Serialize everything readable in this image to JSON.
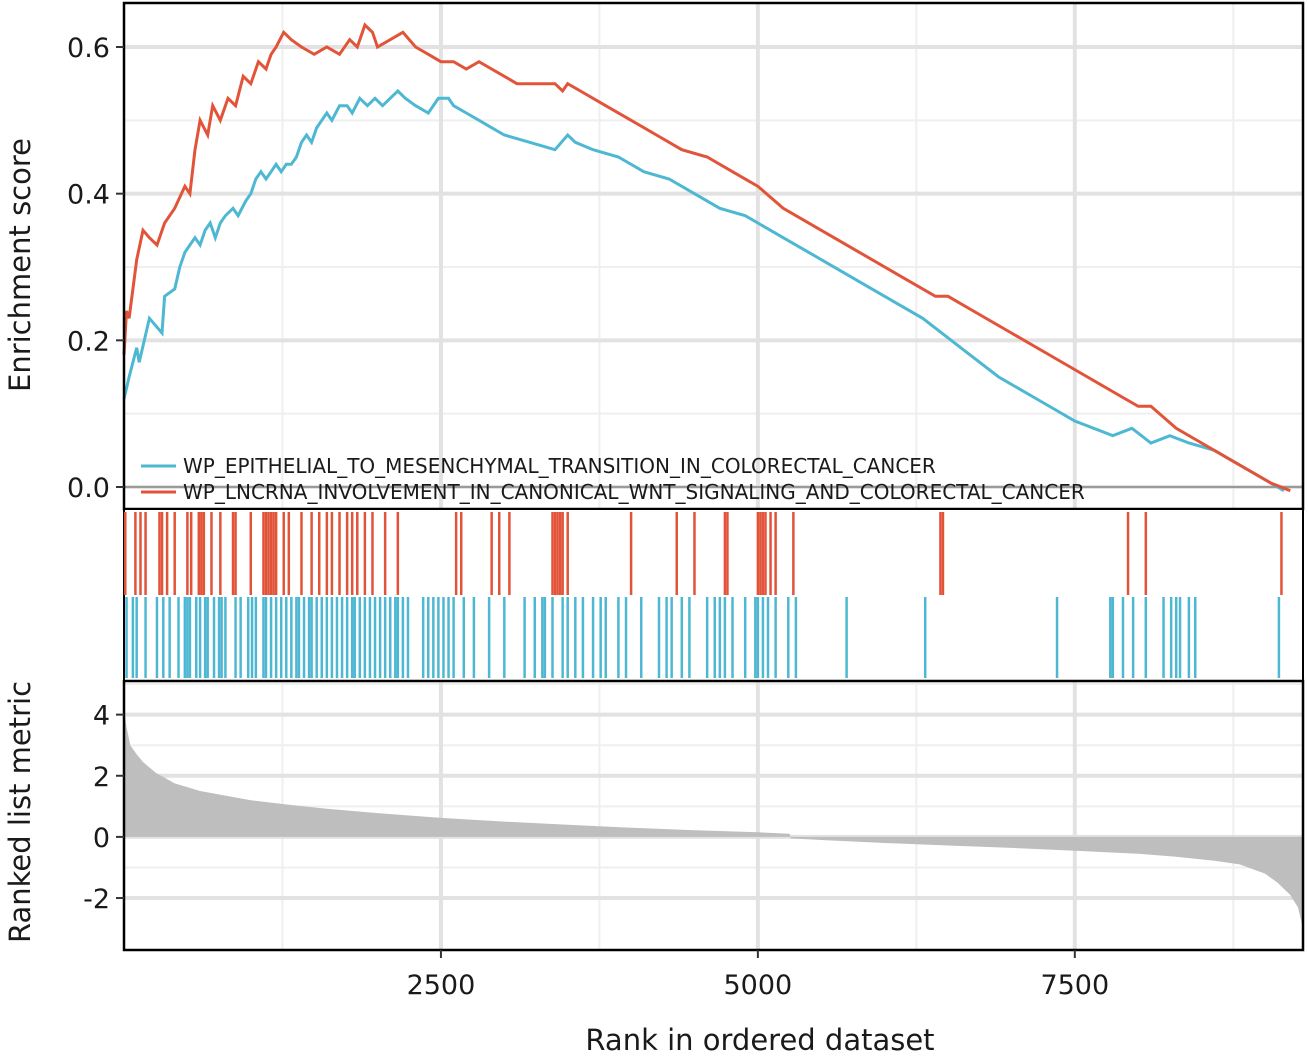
{
  "chart_data": {
    "type": "line",
    "xlabel": "Rank in ordered dataset",
    "xlim": [
      0,
      9300
    ],
    "x_ticks": [
      "2500",
      "5000",
      "7500"
    ],
    "x_tick_values": [
      2500,
      5000,
      7500
    ],
    "grid": true,
    "legend_position": "bottom-left inside top panel",
    "panels": {
      "running_score": {
        "ylabel": "Enrichment score",
        "ylim": [
          -0.03,
          0.66
        ],
        "y_ticks": [
          "0.0",
          "0.2",
          "0.4",
          "0.6"
        ],
        "y_tick_values": [
          0,
          0.2,
          0.4,
          0.6
        ],
        "series": [
          {
            "name": "WP_EPITHELIAL_TO_MESENCHYMAL_TRANSITION_IN_COLORECTAL_CANCER",
            "color": "#4EB8D2",
            "x": [
              0,
              40,
              100,
              120,
              200,
              300,
              320,
              400,
              440,
              480,
              520,
              560,
              600,
              640,
              680,
              720,
              760,
              800,
              860,
              900,
              960,
              1000,
              1040,
              1080,
              1120,
              1160,
              1200,
              1240,
              1280,
              1320,
              1360,
              1400,
              1440,
              1480,
              1520,
              1560,
              1600,
              1640,
              1700,
              1760,
              1800,
              1860,
              1920,
              1980,
              2040,
              2100,
              2160,
              2220,
              2300,
              2400,
              2480,
              2560,
              2600,
              2700,
              2800,
              2900,
              3000,
              3200,
              3400,
              3500,
              3560,
              3700,
              3900,
              4100,
              4300,
              4500,
              4700,
              4900,
              5000,
              5200,
              5400,
              5700,
              6000,
              6300,
              6600,
              6900,
              7200,
              7500,
              7800,
              7950,
              8100,
              8250,
              8400,
              8600,
              8800,
              9000,
              9150
            ],
            "y": [
              0.12,
              0.15,
              0.19,
              0.17,
              0.23,
              0.21,
              0.26,
              0.27,
              0.3,
              0.32,
              0.33,
              0.34,
              0.33,
              0.35,
              0.36,
              0.34,
              0.36,
              0.37,
              0.38,
              0.37,
              0.39,
              0.4,
              0.42,
              0.43,
              0.42,
              0.43,
              0.44,
              0.43,
              0.44,
              0.44,
              0.45,
              0.47,
              0.48,
              0.47,
              0.49,
              0.5,
              0.51,
              0.5,
              0.52,
              0.52,
              0.51,
              0.53,
              0.52,
              0.53,
              0.52,
              0.53,
              0.54,
              0.53,
              0.52,
              0.51,
              0.53,
              0.53,
              0.52,
              0.51,
              0.5,
              0.49,
              0.48,
              0.47,
              0.46,
              0.48,
              0.47,
              0.46,
              0.45,
              0.43,
              0.42,
              0.4,
              0.38,
              0.37,
              0.36,
              0.34,
              0.32,
              0.29,
              0.26,
              0.23,
              0.19,
              0.15,
              0.12,
              0.09,
              0.07,
              0.08,
              0.06,
              0.07,
              0.06,
              0.05,
              0.03,
              0.01,
              -0.005
            ]
          },
          {
            "name": "WP_LNCRNA_INVOLVEMENT_IN_CANONICAL_WNT_SIGNALING_AND_COLORECTAL_CANCER",
            "color": "#E2543A",
            "x": [
              0,
              20,
              40,
              100,
              150,
              200,
              260,
              320,
              400,
              480,
              520,
              560,
              600,
              660,
              700,
              760,
              820,
              880,
              940,
              1000,
              1060,
              1120,
              1160,
              1200,
              1260,
              1320,
              1400,
              1500,
              1600,
              1700,
              1780,
              1840,
              1900,
              1960,
              2000,
              2100,
              2200,
              2300,
              2400,
              2500,
              2600,
              2700,
              2800,
              2900,
              3000,
              3100,
              3200,
              3300,
              3400,
              3460,
              3500,
              3600,
              3800,
              4000,
              4200,
              4400,
              4600,
              4800,
              5000,
              5200,
              5500,
              5800,
              6100,
              6400,
              6500,
              6700,
              7000,
              7300,
              7600,
              7900,
              8000,
              8100,
              8300,
              8500,
              8700,
              8900,
              9050,
              9200
            ],
            "y": [
              0.18,
              0.24,
              0.23,
              0.31,
              0.35,
              0.34,
              0.33,
              0.36,
              0.38,
              0.41,
              0.4,
              0.46,
              0.5,
              0.48,
              0.52,
              0.5,
              0.53,
              0.52,
              0.56,
              0.55,
              0.58,
              0.57,
              0.59,
              0.6,
              0.62,
              0.61,
              0.6,
              0.59,
              0.6,
              0.59,
              0.61,
              0.6,
              0.63,
              0.62,
              0.6,
              0.61,
              0.62,
              0.6,
              0.59,
              0.58,
              0.58,
              0.57,
              0.58,
              0.57,
              0.56,
              0.55,
              0.55,
              0.55,
              0.55,
              0.54,
              0.55,
              0.54,
              0.52,
              0.5,
              0.48,
              0.46,
              0.45,
              0.43,
              0.41,
              0.38,
              0.35,
              0.32,
              0.29,
              0.26,
              0.26,
              0.24,
              0.21,
              0.18,
              0.15,
              0.12,
              0.11,
              0.11,
              0.08,
              0.06,
              0.04,
              0.02,
              0.005,
              -0.005
            ]
          }
        ]
      },
      "hits": {
        "series": [
          {
            "name": "WP_LNCRNA_INVOLVEMENT_IN_CANONICAL_WNT_SIGNALING_AND_COLORECTAL_CANCER",
            "color": "#E2543A",
            "positions": [
              10,
              90,
              130,
              170,
              280,
              300,
              340,
              400,
              500,
              530,
              590,
              610,
              630,
              690,
              760,
              860,
              880,
              1000,
              1100,
              1120,
              1140,
              1160,
              1180,
              1200,
              1260,
              1300,
              1400,
              1480,
              1540,
              1600,
              1640,
              1700,
              1760,
              1800,
              1840,
              1900,
              1960,
              2060,
              2160,
              2620,
              2660,
              2900,
              2960,
              3040,
              3380,
              3400,
              3420,
              3440,
              3460,
              3500,
              4000,
              4360,
              4500,
              4740,
              4760,
              5000,
              5020,
              5040,
              5060,
              5100,
              5140,
              5280,
              6440,
              6460,
              7920,
              8060,
              9130
            ]
          },
          {
            "name": "WP_EPITHELIAL_TO_MESENCHYMAL_TRANSITION_IN_COLORECTAL_CANCER",
            "color": "#4EB8D2",
            "positions": [
              20,
              70,
              100,
              170,
              260,
              310,
              360,
              430,
              480,
              500,
              520,
              570,
              600,
              640,
              660,
              710,
              750,
              770,
              800,
              880,
              920,
              980,
              1010,
              1040,
              1100,
              1120,
              1160,
              1200,
              1240,
              1280,
              1320,
              1360,
              1380,
              1420,
              1460,
              1480,
              1520,
              1560,
              1600,
              1640,
              1680,
              1720,
              1760,
              1800,
              1820,
              1860,
              1900,
              1940,
              1980,
              2020,
              2060,
              2100,
              2140,
              2160,
              2200,
              2240,
              2360,
              2400,
              2440,
              2480,
              2520,
              2560,
              2600,
              2680,
              2760,
              2880,
              3000,
              3160,
              3240,
              3300,
              3320,
              3380,
              3460,
              3500,
              3560,
              3620,
              3700,
              3760,
              3800,
              3900,
              3960,
              4080,
              4220,
              4280,
              4320,
              4400,
              4460,
              4600,
              4660,
              4700,
              4740,
              4800,
              4900,
              4980,
              5000,
              5040,
              5080,
              5140,
              5240,
              5300,
              5700,
              6320,
              7360,
              7780,
              7800,
              7880,
              7960,
              8060,
              8200,
              8260,
              8300,
              8330,
              8400,
              8450,
              9110
            ]
          }
        ]
      },
      "ranked_metric": {
        "ylabel": "Ranked list metric",
        "ylim": [
          -3.7,
          5.1
        ],
        "y_ticks": [
          "-2",
          "0",
          "2",
          "4"
        ],
        "y_tick_values": [
          -2,
          0,
          2,
          4
        ],
        "fill_color": "#BEBEBE",
        "x": [
          0,
          20,
          50,
          100,
          150,
          250,
          400,
          600,
          800,
          1000,
          1300,
          1600,
          2000,
          2500,
          3000,
          3500,
          4000,
          4500,
          5000,
          5250,
          5260,
          5500,
          6000,
          6500,
          7000,
          7500,
          8000,
          8300,
          8600,
          8800,
          9000,
          9100,
          9200,
          9260,
          9290,
          9300
        ],
        "y": [
          4.2,
          3.6,
          3.0,
          2.7,
          2.45,
          2.1,
          1.75,
          1.5,
          1.35,
          1.2,
          1.05,
          0.92,
          0.78,
          0.62,
          0.5,
          0.4,
          0.3,
          0.22,
          0.15,
          0.1,
          -0.05,
          -0.1,
          -0.2,
          -0.28,
          -0.36,
          -0.45,
          -0.55,
          -0.65,
          -0.78,
          -0.9,
          -1.2,
          -1.5,
          -1.9,
          -2.3,
          -2.8,
          -3.1
        ]
      }
    }
  }
}
